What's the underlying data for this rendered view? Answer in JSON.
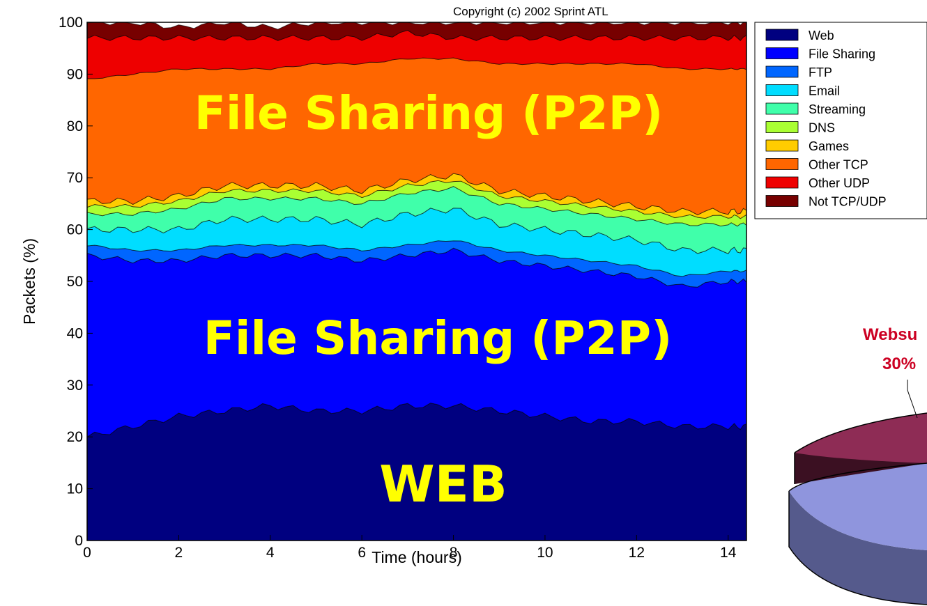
{
  "chart_data": {
    "type": "area",
    "stacked": true,
    "copyright": "Copyright (c) 2002 Sprint ATL",
    "xlabel": "Time (hours)",
    "ylabel": "Packets (%)",
    "xlim": [
      0,
      14.4
    ],
    "ylim": [
      0,
      100
    ],
    "xticks": [
      "0",
      "2",
      "4",
      "6",
      "8",
      "10",
      "12",
      "14"
    ],
    "yticks": [
      "0",
      "10",
      "20",
      "30",
      "40",
      "50",
      "60",
      "70",
      "80",
      "90",
      "100"
    ],
    "grid": false,
    "legend_position": "top-right",
    "x": [
      0,
      1,
      2,
      3,
      4,
      5,
      6,
      7,
      8,
      9,
      10,
      11,
      12,
      13,
      14,
      14.4
    ],
    "series": [
      {
        "name": "Web",
        "color": "#000080",
        "values": [
          20,
          22,
          24,
          25,
          26,
          25,
          25,
          26,
          26,
          25,
          24,
          23,
          23,
          22,
          22,
          22
        ]
      },
      {
        "name": "File Sharing",
        "color": "#0000ff",
        "values": [
          35,
          32,
          30,
          30,
          29,
          30,
          29,
          29,
          30,
          29,
          29,
          29,
          28,
          27,
          28,
          28
        ]
      },
      {
        "name": "FTP",
        "color": "#0066ff",
        "values": [
          2,
          2,
          2,
          2,
          2,
          2,
          2,
          2,
          2,
          2,
          2,
          2,
          2,
          2,
          2,
          2
        ]
      },
      {
        "name": "Email",
        "color": "#00ddff",
        "values": [
          3,
          4,
          4,
          5,
          5,
          5,
          5,
          6,
          6,
          5,
          5,
          5,
          5,
          5,
          4,
          4
        ]
      },
      {
        "name": "Streaming",
        "color": "#40ffaa",
        "values": [
          3,
          3,
          4,
          4,
          4,
          4,
          4,
          4,
          4,
          4,
          4,
          4,
          4,
          5,
          5,
          5
        ]
      },
      {
        "name": "DNS",
        "color": "#aaff33",
        "values": [
          1.5,
          1.5,
          1.5,
          1.5,
          1.5,
          1.5,
          1.5,
          1.5,
          1.5,
          1.5,
          1.5,
          1.5,
          1.5,
          1.5,
          1.5,
          1.5
        ]
      },
      {
        "name": "Games",
        "color": "#ffcc00",
        "values": [
          1,
          1,
          1,
          1,
          1,
          1,
          1,
          1,
          1,
          1,
          1,
          1,
          1,
          1,
          1,
          1
        ]
      },
      {
        "name": "Other TCP",
        "color": "#ff6600",
        "values": [
          23.5,
          24.5,
          24.5,
          22.5,
          22.5,
          23.5,
          24.5,
          23.5,
          22.5,
          24.5,
          25.5,
          26.5,
          27.5,
          27.5,
          27.5,
          27.5
        ]
      },
      {
        "name": "Other UDP",
        "color": "#ee0000",
        "values": [
          8,
          7,
          6,
          6,
          6,
          5,
          5,
          5,
          4,
          5,
          5,
          5,
          5,
          6,
          6,
          6
        ]
      },
      {
        "name": "Not TCP/UDP",
        "color": "#770000",
        "values": [
          3,
          3,
          2,
          3,
          2,
          3,
          3,
          2,
          3,
          3,
          3,
          3,
          3,
          3,
          3,
          3
        ]
      }
    ],
    "annotations": [
      "File Sharing (P2P)",
      "File Sharing (P2P)",
      "WEB"
    ],
    "pie_label": {
      "name": "Websu",
      "value": "30%"
    }
  }
}
